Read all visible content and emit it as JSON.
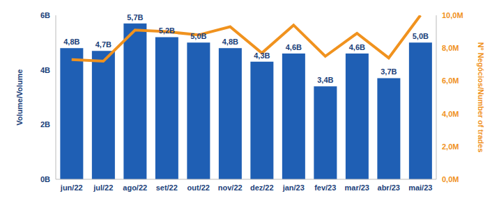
{
  "chart_data": {
    "type": "bar",
    "categories": [
      "jun/22",
      "jul/22",
      "ago/22",
      "set/22",
      "out/22",
      "nov/22",
      "dez/22",
      "jan/23",
      "fev/23",
      "mar/23",
      "abr/23",
      "mai/23"
    ],
    "y_label": "Volume/Volume",
    "y2_label": "Nº Negócios/Number of trades",
    "ylim": [
      0,
      6
    ],
    "yticks": [
      {
        "value": 0,
        "label": "0B"
      },
      {
        "value": 2,
        "label": "2B"
      },
      {
        "value": 4,
        "label": "4B"
      },
      {
        "value": 6,
        "label": "6B"
      }
    ],
    "y2lim": [
      0,
      10
    ],
    "y2ticks": [
      {
        "value": 0,
        "label": "0,0M"
      },
      {
        "value": 2,
        "label": "2,0M"
      },
      {
        "value": 4,
        "label": "4,0M"
      },
      {
        "value": 6,
        "label": "6,0M"
      },
      {
        "value": 8,
        "label": "8,0M"
      },
      {
        "value": 10,
        "label": "10,0M"
      }
    ],
    "grid": false,
    "series": [
      {
        "name": "Volume",
        "type": "bar",
        "color": "#1f5fb4",
        "data_labels": true,
        "values": [
          4.8,
          4.7,
          5.7,
          5.2,
          5.0,
          4.8,
          4.3,
          4.6,
          3.4,
          4.6,
          3.7,
          5.0
        ],
        "value_labels": [
          "4,8B",
          "4,7B",
          "5,7B",
          "5,2B",
          "5,0B",
          "4,8B",
          "4,3B",
          "4,6B",
          "3,4B",
          "4,6B",
          "3,7B",
          "5,0B"
        ]
      },
      {
        "name": "Number of trades",
        "type": "line",
        "axis": "y2",
        "color": "#f0921e",
        "values": [
          7.3,
          7.2,
          9.1,
          9.0,
          8.8,
          9.3,
          7.7,
          9.4,
          7.5,
          8.9,
          7.4,
          10.0
        ]
      }
    ]
  }
}
